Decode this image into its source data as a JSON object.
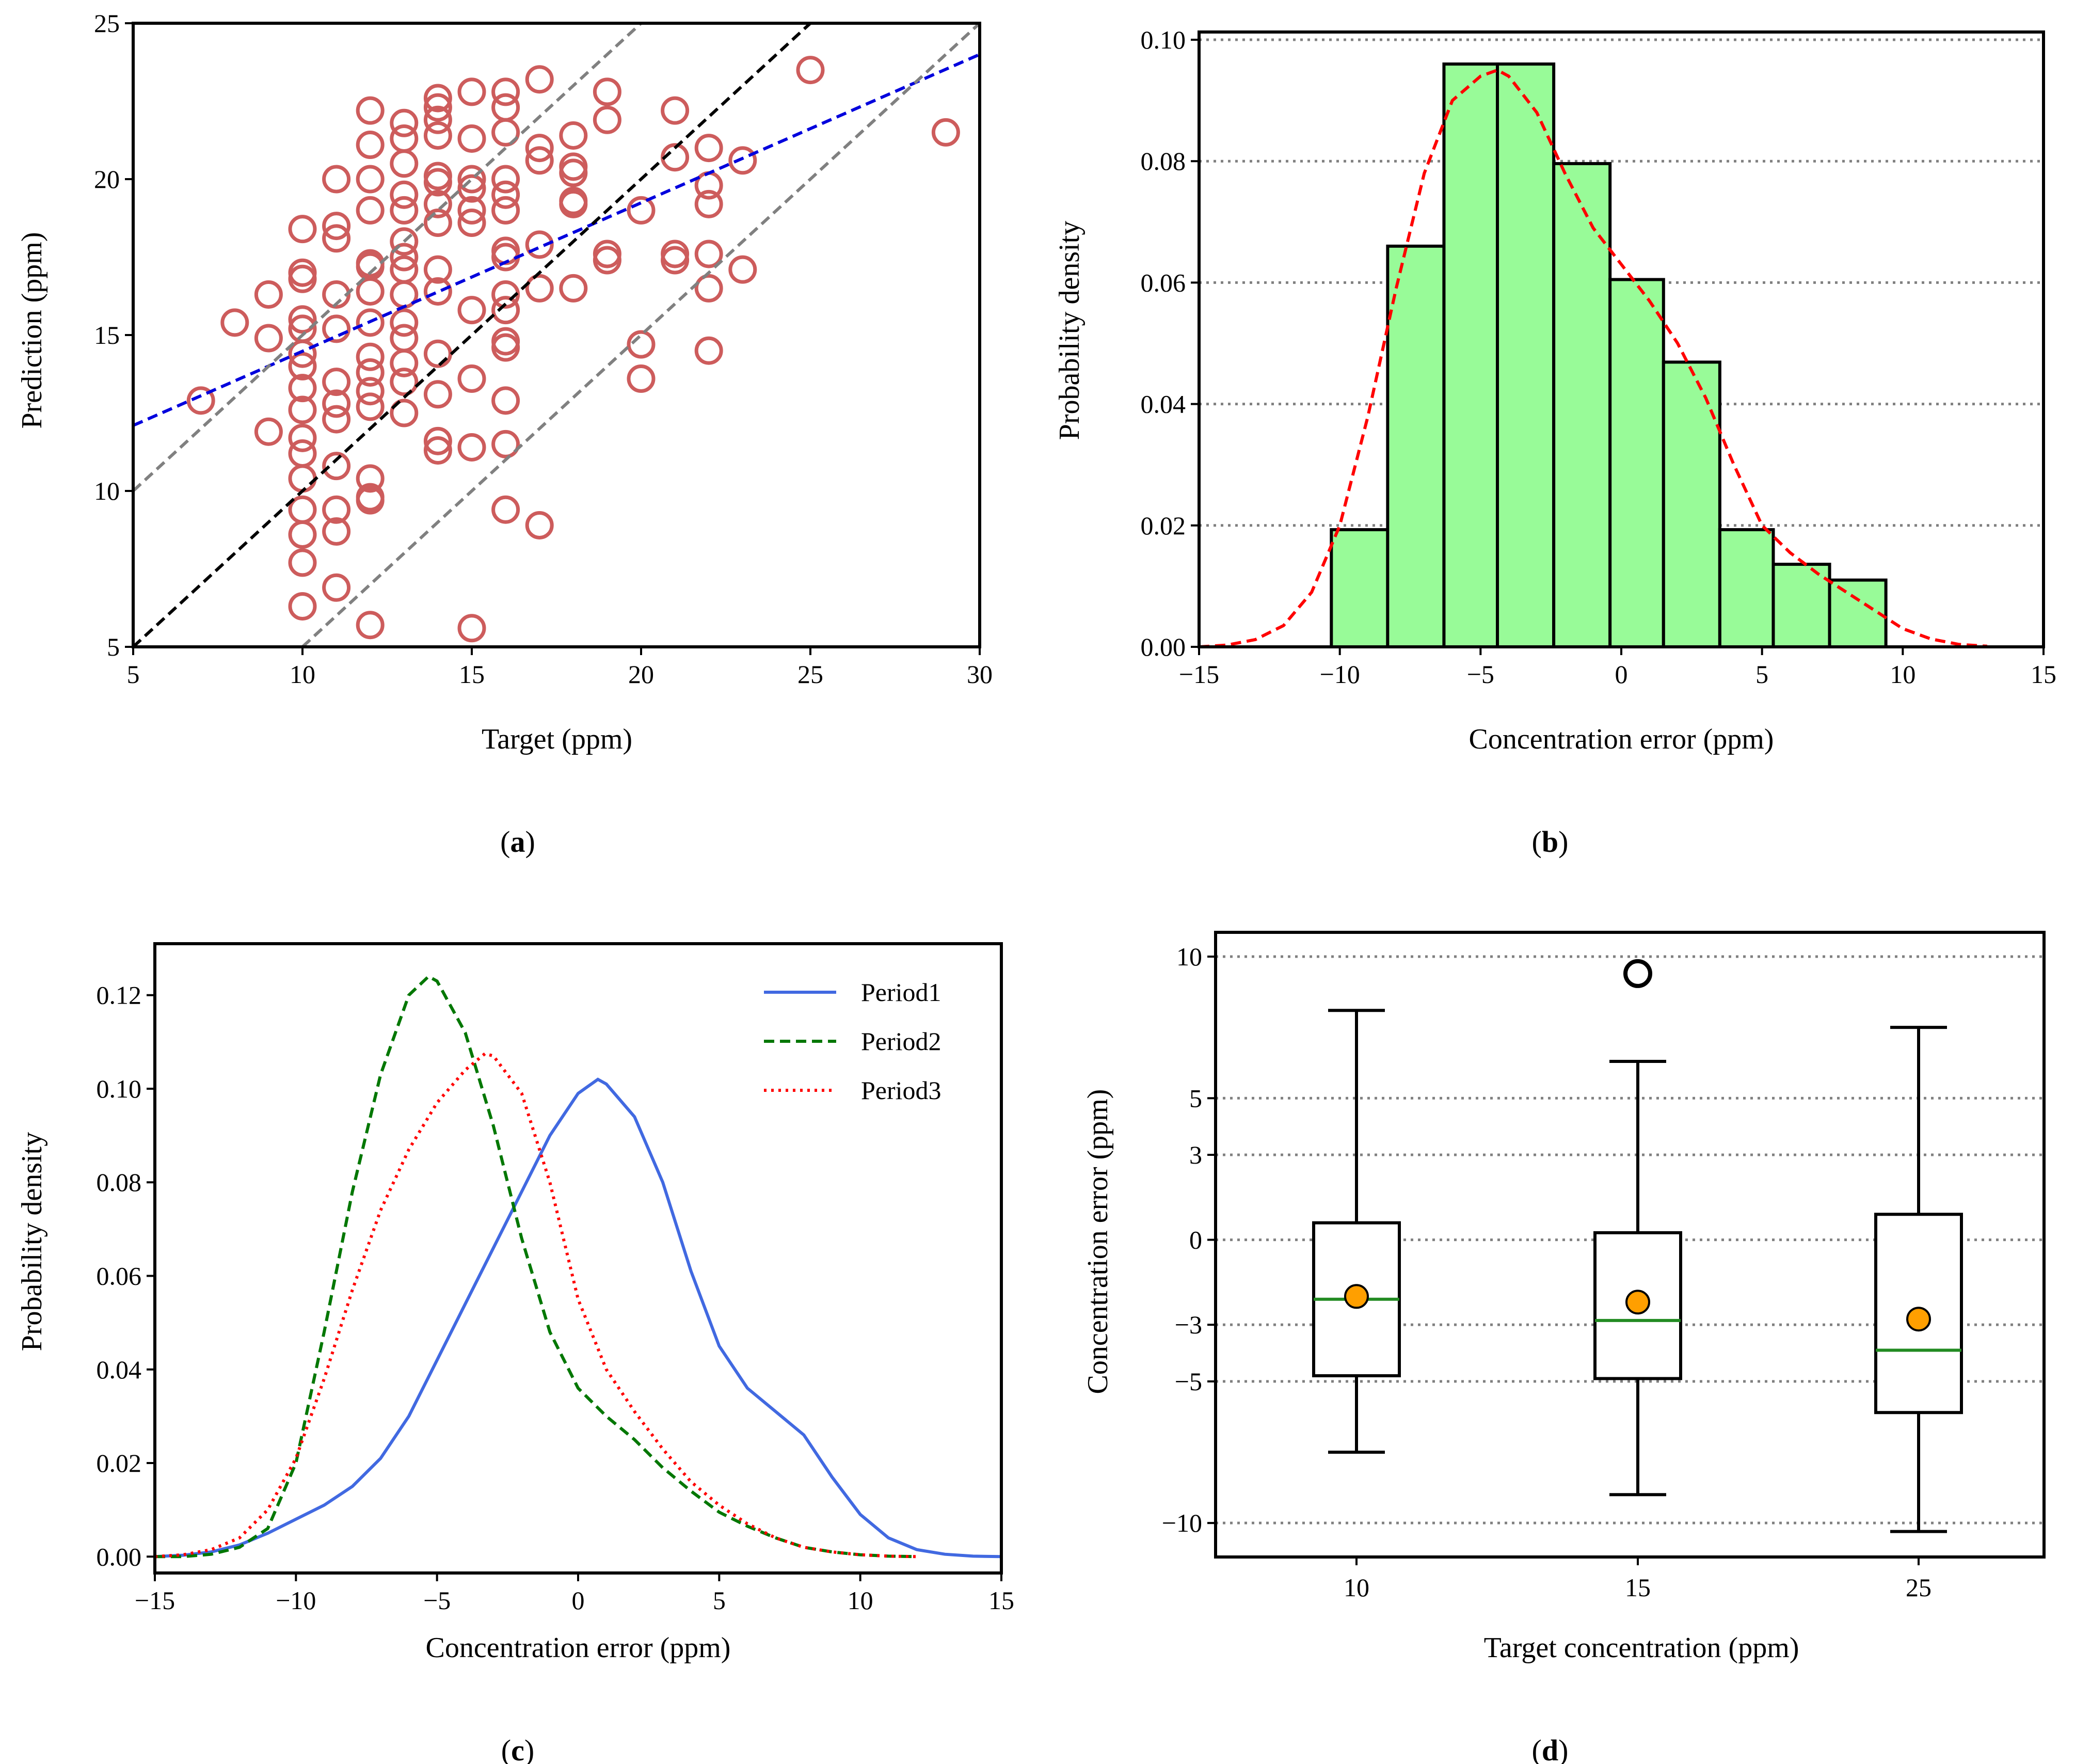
{
  "figure": {
    "panel_labels": [
      {
        "open": "(",
        "letter": "a",
        "close": ")"
      },
      {
        "open": "(",
        "letter": "b",
        "close": ")"
      },
      {
        "open": "(",
        "letter": "c",
        "close": ")"
      },
      {
        "open": "(",
        "letter": "d",
        "close": ")"
      }
    ]
  },
  "colors": {
    "scatter_edge": "#cd5c5c",
    "fit_line": "#0000dd",
    "identity_line": "#000000",
    "band_line": "#808080",
    "hist_fill": "#98fb98",
    "kde_line": "#ff0000",
    "period1": "#4169e1",
    "period2": "#007700",
    "period3": "#ff0000",
    "box_median": "#228b22",
    "box_mean": "#ff9f00",
    "grid": "#808080"
  },
  "chart_data": [
    {
      "id": "a",
      "type": "scatter",
      "xlabel": "Target (ppm)",
      "ylabel": "Prediction (ppm)",
      "xlim": [
        5,
        30
      ],
      "ylim": [
        5,
        25
      ],
      "xticks": [
        5,
        10,
        15,
        20,
        25,
        30
      ],
      "yticks": [
        5,
        10,
        15,
        20,
        25
      ],
      "points": [
        [
          7,
          12.9
        ],
        [
          8,
          15.4
        ],
        [
          9,
          16.3
        ],
        [
          9,
          14.9
        ],
        [
          9,
          11.9
        ],
        [
          10,
          18.4
        ],
        [
          10,
          16.8
        ],
        [
          10,
          17.0
        ],
        [
          10,
          15.5
        ],
        [
          10,
          15.2
        ],
        [
          10,
          14.4
        ],
        [
          10,
          14.0
        ],
        [
          10,
          13.3
        ],
        [
          10,
          12.6
        ],
        [
          10,
          11.7
        ],
        [
          10,
          11.2
        ],
        [
          10,
          10.4
        ],
        [
          10,
          9.4
        ],
        [
          10,
          8.6
        ],
        [
          10,
          7.7
        ],
        [
          10,
          6.3
        ],
        [
          11,
          20.0
        ],
        [
          11,
          18.5
        ],
        [
          11,
          18.1
        ],
        [
          11,
          16.3
        ],
        [
          11,
          15.2
        ],
        [
          11,
          13.5
        ],
        [
          11,
          12.8
        ],
        [
          11,
          12.3
        ],
        [
          11,
          10.8
        ],
        [
          11,
          9.4
        ],
        [
          11,
          8.7
        ],
        [
          11,
          6.9
        ],
        [
          12,
          22.2
        ],
        [
          12,
          21.1
        ],
        [
          12,
          20.0
        ],
        [
          12,
          19.0
        ],
        [
          12,
          17.3
        ],
        [
          12,
          17.2
        ],
        [
          12,
          16.4
        ],
        [
          12,
          15.4
        ],
        [
          12,
          14.3
        ],
        [
          12,
          13.8
        ],
        [
          12,
          13.2
        ],
        [
          12,
          12.7
        ],
        [
          12,
          10.4
        ],
        [
          12,
          9.8
        ],
        [
          12,
          9.7
        ],
        [
          12,
          5.7
        ],
        [
          13,
          21.8
        ],
        [
          13,
          21.3
        ],
        [
          13,
          20.5
        ],
        [
          13,
          19.5
        ],
        [
          13,
          19.0
        ],
        [
          13,
          18.0
        ],
        [
          13,
          17.5
        ],
        [
          13,
          17.1
        ],
        [
          13,
          16.3
        ],
        [
          13,
          15.4
        ],
        [
          13,
          14.9
        ],
        [
          13,
          14.1
        ],
        [
          13,
          13.5
        ],
        [
          13,
          12.5
        ],
        [
          14,
          22.6
        ],
        [
          14,
          22.3
        ],
        [
          14,
          21.9
        ],
        [
          14,
          21.4
        ],
        [
          14,
          20.1
        ],
        [
          14,
          19.9
        ],
        [
          14,
          19.2
        ],
        [
          14,
          18.6
        ],
        [
          14,
          17.1
        ],
        [
          14,
          16.4
        ],
        [
          14,
          14.4
        ],
        [
          14,
          13.1
        ],
        [
          14,
          11.6
        ],
        [
          14,
          11.3
        ],
        [
          15,
          22.8
        ],
        [
          15,
          21.3
        ],
        [
          15,
          20.0
        ],
        [
          15,
          19.7
        ],
        [
          15,
          19.0
        ],
        [
          15,
          18.6
        ],
        [
          15,
          15.8
        ],
        [
          15,
          13.6
        ],
        [
          15,
          11.4
        ],
        [
          15,
          5.6
        ],
        [
          16,
          22.8
        ],
        [
          16,
          22.3
        ],
        [
          16,
          21.5
        ],
        [
          16,
          20.0
        ],
        [
          16,
          19.5
        ],
        [
          16,
          19.0
        ],
        [
          16,
          17.7
        ],
        [
          16,
          17.5
        ],
        [
          16,
          16.3
        ],
        [
          16,
          15.8
        ],
        [
          16,
          14.8
        ],
        [
          16,
          14.6
        ],
        [
          16,
          12.9
        ],
        [
          16,
          11.5
        ],
        [
          16,
          9.4
        ],
        [
          17,
          23.2
        ],
        [
          17,
          21.0
        ],
        [
          17,
          20.6
        ],
        [
          17,
          17.9
        ],
        [
          17,
          16.5
        ],
        [
          17,
          8.9
        ],
        [
          18,
          21.4
        ],
        [
          18,
          20.4
        ],
        [
          18,
          20.2
        ],
        [
          18,
          19.3
        ],
        [
          18,
          19.2
        ],
        [
          18,
          16.5
        ],
        [
          19,
          22.8
        ],
        [
          19,
          21.9
        ],
        [
          19,
          17.6
        ],
        [
          19,
          17.4
        ],
        [
          20,
          19.0
        ],
        [
          20,
          14.7
        ],
        [
          20,
          13.6
        ],
        [
          21,
          22.2
        ],
        [
          21,
          20.7
        ],
        [
          21,
          17.6
        ],
        [
          21,
          17.4
        ],
        [
          22,
          21.0
        ],
        [
          22,
          19.8
        ],
        [
          22,
          19.2
        ],
        [
          22,
          17.6
        ],
        [
          22,
          16.5
        ],
        [
          22,
          14.5
        ],
        [
          23,
          20.6
        ],
        [
          23,
          17.1
        ],
        [
          25,
          23.5
        ],
        [
          29,
          21.5
        ]
      ],
      "lines": [
        {
          "name": "linear fit",
          "points": [
            [
              5,
              12.1
            ],
            [
              30,
              24.0
            ]
          ],
          "style": "dashed",
          "color_key": "fit_line"
        },
        {
          "name": "identity",
          "points": [
            [
              5,
              5
            ],
            [
              25,
              25
            ]
          ],
          "style": "dashed",
          "color_key": "identity_line"
        },
        {
          "name": "upper band",
          "points": [
            [
              5,
              10
            ],
            [
              20,
              25
            ]
          ],
          "style": "dashed",
          "color_key": "band_line"
        },
        {
          "name": "lower band",
          "points": [
            [
              10,
              5
            ],
            [
              30,
              25
            ]
          ],
          "style": "dashed",
          "color_key": "band_line"
        }
      ]
    },
    {
      "id": "b",
      "type": "bar",
      "xlabel": "Concentration error (ppm)",
      "ylabel": "Probability density",
      "xlim": [
        -15,
        15
      ],
      "ylim": [
        0,
        0.1
      ],
      "xticks": [
        -15,
        -10,
        -5,
        0,
        5,
        10,
        15
      ],
      "xtick_labels": [
        "−15",
        "−10",
        "−5",
        "0",
        "5",
        "10",
        "15"
      ],
      "yticks": [
        0,
        0.02,
        0.04,
        0.06,
        0.08,
        0.1
      ],
      "ytick_labels": [
        "0.00",
        "0.02",
        "0.04",
        "0.06",
        "0.08",
        "0.10"
      ],
      "bin_edges": [
        -10.3,
        -8.3,
        -6.3,
        -4.4,
        -2.4,
        -0.4,
        1.5,
        3.5,
        5.4,
        7.4,
        9.4
      ],
      "values": [
        0.0193,
        0.066,
        0.096,
        0.096,
        0.0796,
        0.0605,
        0.0469,
        0.0193,
        0.0136,
        0.011
      ],
      "kde": {
        "x": [
          -15,
          -14,
          -13,
          -12,
          -11,
          -10,
          -9,
          -8,
          -7,
          -6,
          -5,
          -4.4,
          -4,
          -3,
          -2,
          -1,
          0,
          1,
          2,
          3,
          4,
          5,
          6,
          7,
          8,
          9,
          10,
          11,
          12,
          13
        ],
        "y": [
          0,
          0.0003,
          0.0012,
          0.0035,
          0.009,
          0.02,
          0.038,
          0.059,
          0.078,
          0.09,
          0.094,
          0.095,
          0.094,
          0.088,
          0.078,
          0.069,
          0.063,
          0.057,
          0.05,
          0.041,
          0.03,
          0.02,
          0.0155,
          0.012,
          0.009,
          0.006,
          0.003,
          0.0013,
          0.0004,
          0.0001
        ]
      },
      "grid": "y dotted"
    },
    {
      "id": "c",
      "type": "line",
      "xlabel": "Concentration error (ppm)",
      "ylabel": "Probability density",
      "xlim": [
        -15,
        15
      ],
      "ylim": [
        -0.0035,
        0.131
      ],
      "xticks": [
        -15,
        -10,
        -5,
        0,
        5,
        10,
        15
      ],
      "xtick_labels": [
        "−15",
        "−10",
        "−5",
        "0",
        "5",
        "10",
        "15"
      ],
      "yticks": [
        0,
        0.02,
        0.04,
        0.06,
        0.08,
        0.1,
        0.12
      ],
      "ytick_labels": [
        "0.00",
        "0.02",
        "0.04",
        "0.06",
        "0.08",
        "0.10",
        "0.12"
      ],
      "legend_position": "top-right",
      "series": [
        {
          "name": "Period1",
          "style": "solid",
          "color_key": "period1",
          "x": [
            -15,
            -14,
            -13,
            -12,
            -11,
            -10,
            -9,
            -8,
            -7,
            -6,
            -5,
            -4,
            -3,
            -2,
            -1,
            0,
            0.7,
            1,
            2,
            3,
            4,
            5,
            6,
            7,
            8,
            9,
            10,
            11,
            12,
            13,
            14,
            15
          ],
          "y": [
            0,
            0.0003,
            0.001,
            0.0025,
            0.005,
            0.008,
            0.011,
            0.015,
            0.021,
            0.03,
            0.042,
            0.054,
            0.066,
            0.078,
            0.09,
            0.099,
            0.102,
            0.101,
            0.094,
            0.08,
            0.061,
            0.045,
            0.036,
            0.031,
            0.026,
            0.017,
            0.009,
            0.004,
            0.0015,
            0.0005,
            0.0001,
            0
          ]
        },
        {
          "name": "Period2",
          "style": "dashed",
          "color_key": "period2",
          "x": [
            -15,
            -14,
            -13,
            -12,
            -11,
            -10,
            -9,
            -8,
            -7,
            -6,
            -5.3,
            -5,
            -4,
            -3,
            -2,
            -1,
            0,
            1,
            2,
            3,
            4,
            5,
            6,
            7,
            8,
            9,
            10,
            11,
            12
          ],
          "y": [
            0,
            0,
            0.0005,
            0.002,
            0.006,
            0.02,
            0.048,
            0.078,
            0.103,
            0.12,
            0.124,
            0.123,
            0.112,
            0.092,
            0.068,
            0.048,
            0.036,
            0.03,
            0.025,
            0.019,
            0.014,
            0.0095,
            0.0065,
            0.004,
            0.002,
            0.001,
            0.0004,
            0.0001,
            0
          ]
        },
        {
          "name": "Period3",
          "style": "dotted",
          "color_key": "period3",
          "x": [
            -15,
            -14,
            -13,
            -12,
            -11,
            -10,
            -9,
            -8,
            -7,
            -6,
            -5,
            -4,
            -3.3,
            -3,
            -2,
            -1,
            0,
            1,
            2,
            3,
            4,
            5,
            6,
            7,
            8,
            9,
            10,
            11,
            12
          ],
          "y": [
            0,
            0.0004,
            0.0015,
            0.004,
            0.01,
            0.021,
            0.038,
            0.057,
            0.074,
            0.087,
            0.097,
            0.104,
            0.1075,
            0.107,
            0.099,
            0.08,
            0.055,
            0.04,
            0.031,
            0.023,
            0.016,
            0.011,
            0.007,
            0.004,
            0.002,
            0.001,
            0.0004,
            0.0001,
            0
          ]
        }
      ]
    },
    {
      "id": "d",
      "type": "box",
      "xlabel": "Target concentration (ppm)",
      "ylabel": "Concentration error (ppm)",
      "ylim": [
        -11.2,
        10
      ],
      "yticks": [
        -10,
        -5,
        -3,
        0,
        3,
        5,
        10
      ],
      "ytick_labels": [
        "−10",
        "−5",
        "−3",
        "0",
        "3",
        "5",
        "10"
      ],
      "categories": [
        "10",
        "15",
        "25"
      ],
      "boxes": [
        {
          "label": "10",
          "whisker_low": -7.5,
          "q1": -4.8,
          "median": -2.1,
          "q3": 0.6,
          "whisker_high": 8.1,
          "mean": -2.0,
          "outliers": []
        },
        {
          "label": "15",
          "whisker_low": -9.0,
          "q1": -4.9,
          "median": -2.85,
          "q3": 0.25,
          "whisker_high": 6.3,
          "mean": -2.2,
          "outliers": [
            9.4
          ]
        },
        {
          "label": "25",
          "whisker_low": -10.3,
          "q1": -6.1,
          "median": -3.9,
          "q3": 0.9,
          "whisker_high": 7.5,
          "mean": -2.8,
          "outliers": []
        }
      ],
      "grid": "y dotted"
    }
  ]
}
